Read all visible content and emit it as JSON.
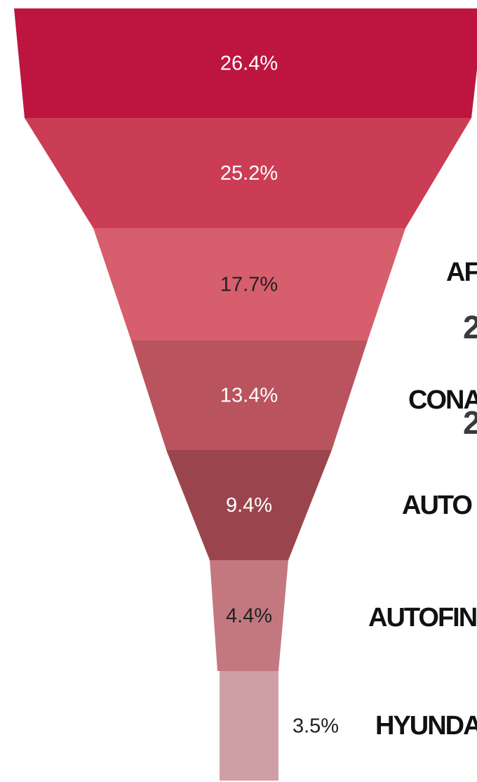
{
  "chart_data": {
    "type": "funnel",
    "values": [
      26.4,
      25.2,
      17.7,
      13.4,
      9.4,
      4.4,
      3.5
    ],
    "value_labels": [
      "26.4%",
      "25.2%",
      "17.7%",
      "13.4%",
      "9.4%",
      "4.4%",
      "3.5%"
    ],
    "colors": [
      "#bd1540",
      "#cb3d55",
      "#d75e6c",
      "#b9545e",
      "#9a454d",
      "#c37880",
      "#cf9fa6"
    ],
    "annotations": [
      "AF",
      "2",
      "CONA",
      "2",
      "AUTO",
      "AUTOFIN",
      "HYUNDA"
    ]
  }
}
